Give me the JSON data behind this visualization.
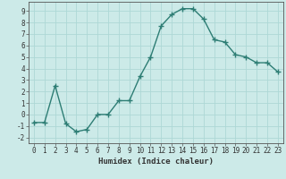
{
  "x": [
    0,
    1,
    2,
    3,
    4,
    5,
    6,
    7,
    8,
    9,
    10,
    11,
    12,
    13,
    14,
    15,
    16,
    17,
    18,
    19,
    20,
    21,
    22,
    23
  ],
  "y": [
    -0.7,
    -0.7,
    2.5,
    -0.8,
    -1.5,
    -1.3,
    0.0,
    0.0,
    1.2,
    1.2,
    3.3,
    5.0,
    7.7,
    8.7,
    9.2,
    9.2,
    8.3,
    6.5,
    6.3,
    5.2,
    5.0,
    4.5,
    4.5,
    3.7
  ],
  "line_color": "#2d7d74",
  "marker": "+",
  "bg_color": "#cceae8",
  "grid_color": "#add8d6",
  "xlabel": "Humidex (Indice chaleur)",
  "xlim": [
    -0.5,
    23.5
  ],
  "ylim": [
    -2.5,
    9.8
  ],
  "yticks": [
    -2,
    -1,
    0,
    1,
    2,
    3,
    4,
    5,
    6,
    7,
    8,
    9
  ],
  "xticks": [
    0,
    1,
    2,
    3,
    4,
    5,
    6,
    7,
    8,
    9,
    10,
    11,
    12,
    13,
    14,
    15,
    16,
    17,
    18,
    19,
    20,
    21,
    22,
    23
  ],
  "font_color": "#333333",
  "linewidth": 1.0,
  "markersize": 4,
  "tick_fontsize": 5.5,
  "xlabel_fontsize": 6.5
}
